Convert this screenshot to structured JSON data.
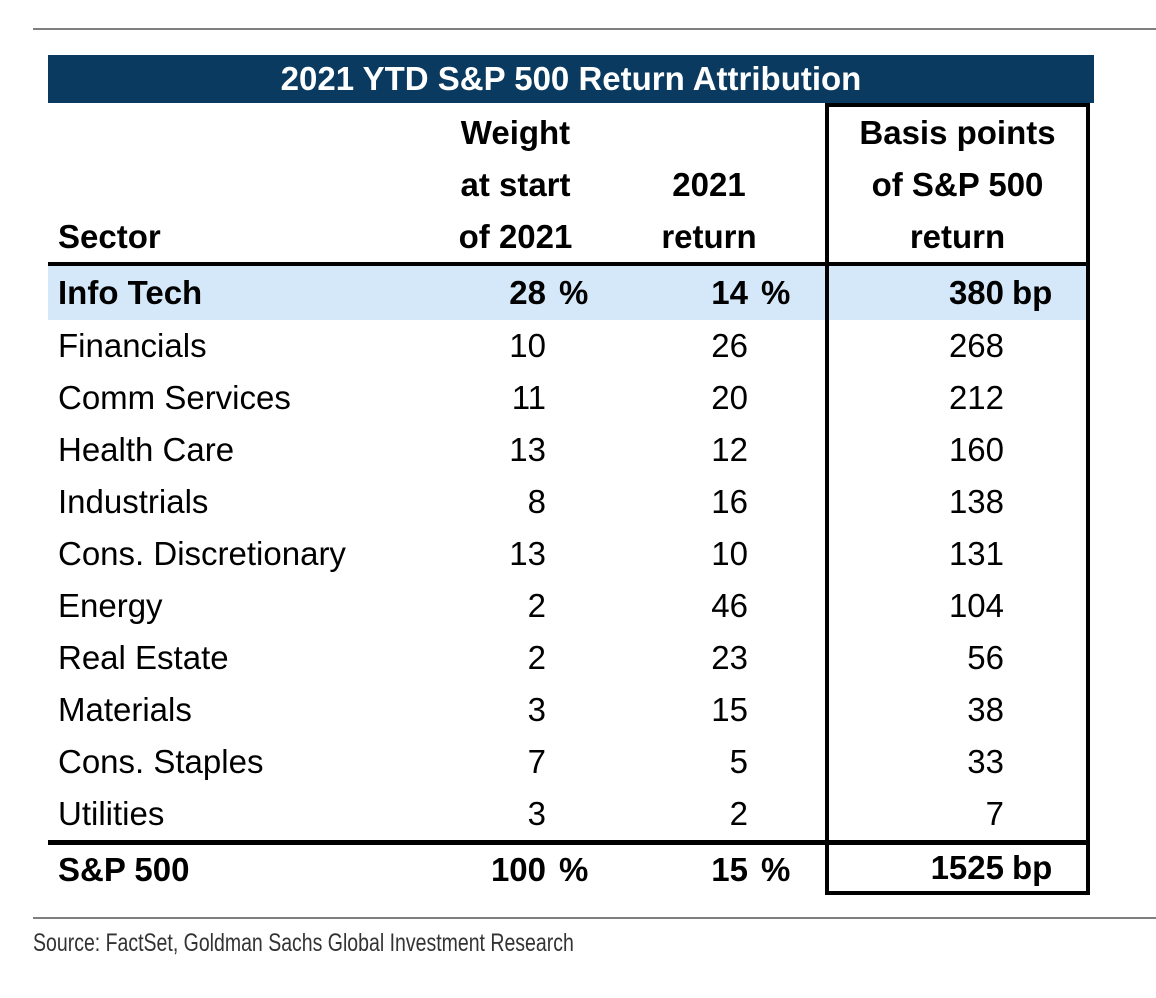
{
  "title": "2021 YTD S&P 500 Return Attribution",
  "colors": {
    "navy": "#0a3a5f",
    "highlight_blue": "#d5e8f9",
    "divider_gray": "#7f7f7f"
  },
  "columns": {
    "sector": "Sector",
    "weight_lines": [
      "Weight",
      "at start",
      "of 2021"
    ],
    "return_lines": [
      "2021",
      "return"
    ],
    "bp_lines": [
      "Basis points",
      "of S&P 500",
      "return"
    ]
  },
  "rows": [
    {
      "sector": "Info Tech",
      "weight": "28",
      "weight_unit": "%",
      "ret": "14",
      "ret_unit": "%",
      "bp": "380",
      "bp_unit": "bp",
      "highlight": true
    },
    {
      "sector": "Financials",
      "weight": "10",
      "ret": "26",
      "bp": "268"
    },
    {
      "sector": "Comm Services",
      "weight": "11",
      "ret": "20",
      "bp": "212"
    },
    {
      "sector": "Health Care",
      "weight": "13",
      "ret": "12",
      "bp": "160"
    },
    {
      "sector": "Industrials",
      "weight": "8",
      "ret": "16",
      "bp": "138"
    },
    {
      "sector": "Cons. Discretionary",
      "weight": "13",
      "ret": "10",
      "bp": "131"
    },
    {
      "sector": "Energy",
      "weight": "2",
      "ret": "46",
      "bp": "104"
    },
    {
      "sector": "Real Estate",
      "weight": "2",
      "ret": "23",
      "bp": "56"
    },
    {
      "sector": "Materials",
      "weight": "3",
      "ret": "15",
      "bp": "38"
    },
    {
      "sector": "Cons. Staples",
      "weight": "7",
      "ret": "5",
      "bp": "33"
    },
    {
      "sector": "Utilities",
      "weight": "3",
      "ret": "2",
      "bp": "7"
    }
  ],
  "total_row": {
    "sector": "S&P 500",
    "weight": "100",
    "weight_unit": "%",
    "ret": "15",
    "ret_unit": "%",
    "bp": "1525",
    "bp_unit": "bp"
  },
  "source": "Source: FactSet, Goldman Sachs Global Investment Research",
  "chart_data": {
    "type": "table",
    "title": "2021 YTD S&P 500 Return Attribution",
    "columns": [
      "Sector",
      "Weight at start of 2021 (%)",
      "2021 return (%)",
      "Basis points of S&P 500 return (bp)"
    ],
    "rows": [
      [
        "Info Tech",
        28,
        14,
        380
      ],
      [
        "Financials",
        10,
        26,
        268
      ],
      [
        "Comm Services",
        11,
        20,
        212
      ],
      [
        "Health Care",
        13,
        12,
        160
      ],
      [
        "Industrials",
        8,
        16,
        138
      ],
      [
        "Cons. Discretionary",
        13,
        10,
        131
      ],
      [
        "Energy",
        2,
        46,
        104
      ],
      [
        "Real Estate",
        2,
        23,
        56
      ],
      [
        "Materials",
        3,
        15,
        38
      ],
      [
        "Cons. Staples",
        7,
        5,
        33
      ],
      [
        "Utilities",
        3,
        2,
        7
      ],
      [
        "S&P 500",
        100,
        15,
        1525
      ]
    ],
    "highlighted_row": "Info Tech",
    "source": "Source: FactSet, Goldman Sachs Global Investment Research"
  }
}
